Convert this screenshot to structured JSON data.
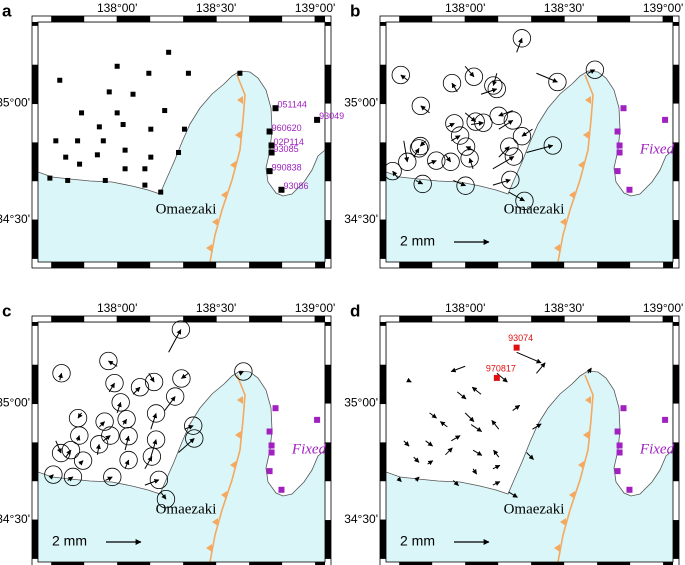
{
  "map": {
    "xlim": [
      137.6,
      139.05
    ],
    "ylim": [
      34.32,
      35.35
    ],
    "xticks": [
      {
        "value": 138,
        "label": "138°00'"
      },
      {
        "value": 138.5,
        "label": "138°30'"
      },
      {
        "value": 139,
        "label": "139°00'"
      }
    ],
    "yticks": [
      {
        "value": 34.5,
        "label": "34°30'"
      },
      {
        "value": 35,
        "label": "35°00'"
      }
    ],
    "place": "Omaezaki",
    "fixed_label": "Fixed",
    "fixed_color": "#a020c0",
    "scale": {
      "value": 2,
      "label": "2 mm"
    },
    "stations": [
      {
        "lon": 137.71,
        "lat": 35.1
      },
      {
        "lon": 138.0,
        "lat": 35.16
      },
      {
        "lon": 138.26,
        "lat": 35.22
      },
      {
        "lon": 138.16,
        "lat": 35.13
      },
      {
        "lon": 138.36,
        "lat": 35.13
      },
      {
        "lon": 137.96,
        "lat": 35.05
      },
      {
        "lon": 138.08,
        "lat": 35.04
      },
      {
        "lon": 137.82,
        "lat": 34.96
      },
      {
        "lon": 138.0,
        "lat": 34.96
      },
      {
        "lon": 138.24,
        "lat": 34.97
      },
      {
        "lon": 137.91,
        "lat": 34.9
      },
      {
        "lon": 138.03,
        "lat": 34.91
      },
      {
        "lon": 137.69,
        "lat": 34.84
      },
      {
        "lon": 137.8,
        "lat": 34.84
      },
      {
        "lon": 137.93,
        "lat": 34.84
      },
      {
        "lon": 138.17,
        "lat": 34.89
      },
      {
        "lon": 138.34,
        "lat": 34.89
      },
      {
        "lon": 137.9,
        "lat": 34.78
      },
      {
        "lon": 138.04,
        "lat": 34.8
      },
      {
        "lon": 138.17,
        "lat": 34.77
      },
      {
        "lon": 138.31,
        "lat": 34.79
      },
      {
        "lon": 137.74,
        "lat": 34.77
      },
      {
        "lon": 137.81,
        "lat": 34.74
      },
      {
        "lon": 138.04,
        "lat": 34.72
      },
      {
        "lon": 138.14,
        "lat": 34.72
      },
      {
        "lon": 137.66,
        "lat": 34.68
      },
      {
        "lon": 137.75,
        "lat": 34.67
      },
      {
        "lon": 137.94,
        "lat": 34.67
      },
      {
        "lon": 138.14,
        "lat": 34.65
      },
      {
        "lon": 138.22,
        "lat": 34.62
      },
      {
        "lon": 138.62,
        "lat": 35.13
      }
    ],
    "fixed_stations": [
      {
        "lon": 138.8,
        "lat": 34.98,
        "label": "051144"
      },
      {
        "lon": 139.01,
        "lat": 34.93,
        "label": "93049"
      },
      {
        "lon": 138.77,
        "lat": 34.88,
        "label": "960620"
      },
      {
        "lon": 138.78,
        "lat": 34.82,
        "label": "02P114"
      },
      {
        "lon": 138.78,
        "lat": 34.79,
        "label": "93085"
      },
      {
        "lon": 138.77,
        "lat": 34.71,
        "label": "990838"
      },
      {
        "lon": 138.83,
        "lat": 34.63,
        "label": "93086"
      }
    ],
    "panels": [
      {
        "letter": "a"
      },
      {
        "letter": "b",
        "error": 0.5,
        "vectors": [
          [
            -0.4,
            0.3
          ],
          [
            0.5,
            -0.6
          ],
          [
            0.3,
            0.8
          ],
          [
            -0.2,
            -0.7
          ],
          [
            1.2,
            -0.5
          ],
          [
            -0.3,
            0.5
          ],
          [
            0.9,
            0.3
          ],
          [
            -0.5,
            0.4
          ],
          [
            0.6,
            -0.5
          ],
          [
            -0.8,
            -0.3
          ],
          [
            0.4,
            0.2
          ],
          [
            0.7,
            0.1
          ],
          [
            0.2,
            -1.2
          ],
          [
            -0.3,
            -0.3
          ],
          [
            0.5,
            0.3
          ],
          [
            0.8,
            0.5
          ],
          [
            -0.6,
            -0.4
          ],
          [
            0.3,
            -0.4
          ],
          [
            -0.4,
            0.2
          ],
          [
            0.6,
            0.6
          ],
          [
            1.5,
            0.4
          ],
          [
            0.3,
            0.5
          ],
          [
            0.5,
            0.2
          ],
          [
            -0.2,
            0.6
          ],
          [
            1.2,
            0.7
          ],
          [
            -0.3,
            0.4
          ],
          [
            0.4,
            -0.2
          ],
          [
            0.7,
            -0.3
          ],
          [
            1.0,
            0.3
          ],
          [
            0.9,
            -0.5
          ],
          [
            0.4,
            0.2
          ]
        ]
      },
      {
        "letter": "c",
        "error": 0.5,
        "vectors": [
          [
            0.1,
            0.4
          ],
          [
            -0.5,
            0.3
          ],
          [
            0.7,
            1.3
          ],
          [
            0.3,
            -0.5
          ],
          [
            -0.4,
            -0.3
          ],
          [
            0.3,
            0.5
          ],
          [
            0.4,
            0.4
          ],
          [
            -0.2,
            -0.3
          ],
          [
            0.2,
            0.6
          ],
          [
            0.6,
            0.8
          ],
          [
            0.3,
            0.3
          ],
          [
            0.2,
            0.3
          ],
          [
            0.3,
            -0.7
          ],
          [
            0.1,
            0.3
          ],
          [
            0.4,
            0.3
          ],
          [
            0.3,
            0.9
          ],
          [
            0.5,
            0.2
          ],
          [
            0.1,
            0.6
          ],
          [
            0.2,
            0.8
          ],
          [
            0.3,
            1.0
          ],
          [
            0.9,
            0.8
          ],
          [
            0.3,
            0.4
          ],
          [
            0.2,
            0.2
          ],
          [
            0.2,
            0.5
          ],
          [
            0.4,
            0.7
          ],
          [
            0.2,
            0.2
          ],
          [
            0.3,
            0.2
          ],
          [
            0.4,
            0.2
          ],
          [
            0.8,
            0.3
          ],
          [
            0.3,
            -0.4
          ],
          [
            0.2,
            0.1
          ]
        ]
      },
      {
        "letter": "d",
        "vectors": [
          [
            0.2,
            -0.1
          ],
          [
            -0.8,
            -0.3
          ],
          [
            1.4,
            -0.6
          ],
          [
            0.6,
            -0.5
          ],
          [
            0.5,
            0.6
          ],
          [
            0.5,
            -0.4
          ],
          [
            -0.5,
            0.4
          ],
          [
            0.4,
            -0.3
          ],
          [
            0.5,
            -0.5
          ],
          [
            0.4,
            0.3
          ],
          [
            -0.4,
            0.3
          ],
          [
            0.6,
            -0.4
          ],
          [
            0.3,
            -0.3
          ],
          [
            0.4,
            -0.3
          ],
          [
            0.5,
            0.3
          ],
          [
            -0.4,
            0.5
          ],
          [
            0.5,
            0.3
          ],
          [
            0.4,
            0.4
          ],
          [
            0.5,
            -0.3
          ],
          [
            -0.3,
            0.4
          ],
          [
            0.4,
            -0.4
          ],
          [
            0.3,
            -0.3
          ],
          [
            0.3,
            0.2
          ],
          [
            0.2,
            -0.3
          ],
          [
            0.4,
            0.2
          ],
          [
            0.2,
            -0.2
          ],
          [
            0.2,
            0.2
          ],
          [
            0.3,
            -0.3
          ],
          [
            0.4,
            0.2
          ],
          [
            0.5,
            -0.3
          ],
          [
            0.2,
            0.3
          ]
        ],
        "marked": [
          {
            "label": "93074",
            "lon": 138.26,
            "lat": 35.24,
            "color": "#e01010"
          },
          {
            "label": "970817",
            "lon": 138.16,
            "lat": 35.11,
            "color": "#e01010"
          }
        ]
      }
    ]
  }
}
